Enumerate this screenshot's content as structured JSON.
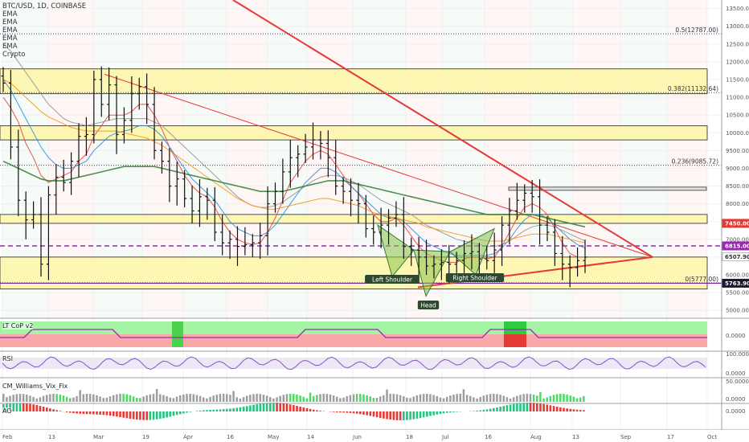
{
  "header": {
    "symbol": "BTC/USD, 1D, COINBASE",
    "indicators": [
      "EMA",
      "EMA",
      "EMA",
      "EMA",
      "EMA",
      "Crypto"
    ]
  },
  "panes": {
    "ltcop": "LT CoP v2",
    "rsi": "RSI",
    "vix": "CM_Williams_Vix_Fix",
    "ao": "AO"
  },
  "chart_data": {
    "type": "candlestick",
    "x_ticks": [
      "Feb",
      "13",
      "Mar",
      "19",
      "Apr",
      "16",
      "May",
      "14",
      "Jun",
      "18",
      "Jul",
      "16",
      "Aug",
      "13",
      "Sep",
      "17",
      "Oct"
    ],
    "y_ticks": [
      5000,
      5500,
      6000,
      6500,
      7000,
      7500,
      8000,
      8500,
      9000,
      9500,
      10000,
      10500,
      11000,
      11500,
      12000,
      12500,
      13000,
      13500
    ],
    "ylim": [
      4800,
      13650
    ],
    "closes": [
      11400,
      9600,
      8100,
      7550,
      7700,
      6300,
      8250,
      8750,
      8600,
      9200,
      9900,
      9950,
      11500,
      10800,
      11350,
      9950,
      10350,
      11100,
      11300,
      10800,
      9500,
      9200,
      8500,
      8700,
      8150,
      7800,
      8200,
      8100,
      7200,
      6900,
      7000,
      6800,
      6850,
      6900,
      7100,
      8000,
      8350,
      8900,
      9300,
      9400,
      9600,
      9800,
      9700,
      9300,
      8500,
      8350,
      8100,
      8000,
      7300,
      7200,
      7400,
      7600,
      7700,
      6800,
      6700,
      6500,
      6250,
      6300,
      6350,
      6300,
      6400,
      6600,
      6650,
      6450,
      6400,
      6700,
      7400,
      7800,
      8100,
      8300,
      8200,
      7400,
      7200,
      6600,
      6300,
      6200,
      6400,
      6500
    ],
    "ema_series": [
      {
        "color": "#e53935",
        "values": [
          11000,
          10700,
          10300,
          9700,
          9300,
          8800,
          8600,
          8700,
          8800,
          8900,
          9200,
          9400,
          9900,
          10200,
          10500,
          10500,
          10500,
          10600,
          10800,
          10800,
          10500,
          10100,
          9600,
          9200,
          8800,
          8500,
          8300,
          8200,
          7900,
          7500,
          7200,
          7000,
          6900,
          6850,
          6900,
          7200,
          7600,
          8100,
          8600,
          8900,
          9200,
          9400,
          9500,
          9400,
          9100,
          8800,
          8500,
          8300,
          8000,
          7700,
          7500,
          7500,
          7600,
          7400,
          7100,
          6800,
          6600,
          6500,
          6400,
          6350,
          6350,
          6450,
          6500,
          6500,
          6450,
          6500,
          6800,
          7200,
          7600,
          7900,
          8000,
          7900,
          7700,
          7300,
          6900,
          6600,
          6500,
          6500
        ]
      },
      {
        "color": "#1e88e5",
        "values": [
          11500,
          11200,
          10800,
          10400,
          10000,
          9600,
          9300,
          9100,
          9000,
          9000,
          9100,
          9200,
          9500,
          9700,
          9900,
          10000,
          10050,
          10100,
          10200,
          10200,
          10100,
          9900,
          9600,
          9300,
          9000,
          8700,
          8500,
          8300,
          8100,
          7800,
          7500,
          7300,
          7200,
          7100,
          7100,
          7200,
          7400,
          7700,
          8000,
          8300,
          8600,
          8800,
          9000,
          9000,
          8900,
          8700,
          8500,
          8300,
          8100,
          7900,
          7700,
          7600,
          7600,
          7500,
          7300,
          7100,
          6900,
          6800,
          6700,
          6600,
          6550,
          6550,
          6550,
          6550,
          6550,
          6600,
          6750,
          7000,
          7300,
          7550,
          7700,
          7700,
          7600,
          7400,
          7200,
          7000,
          6850,
          6750
        ]
      },
      {
        "color": "#8e8e8e",
        "values": [
          12500,
          12300,
          12000,
          11700,
          11400,
          11100,
          10800,
          10600,
          10400,
          10300,
          10250,
          10200,
          10250,
          10300,
          10350,
          10400,
          10400,
          10400,
          10400,
          10400,
          10300,
          10200,
          10000,
          9800,
          9600,
          9400,
          9200,
          9000,
          8800,
          8600,
          8400,
          8200,
          8050,
          7950,
          7900,
          7900,
          7950,
          8050,
          8200,
          8350,
          8500,
          8650,
          8750,
          8800,
          8800,
          8750,
          8650,
          8550,
          8400,
          8250,
          8100,
          8000,
          7900,
          7800,
          7700,
          7550,
          7400,
          7300,
          7200,
          7100,
          7000,
          6950,
          6900,
          6850,
          6800,
          6800,
          6850,
          6950,
          7100,
          7250,
          7350,
          7400,
          7400,
          7350,
          7250,
          7150,
          7050,
          6950
        ]
      },
      {
        "color": "#fb8c00",
        "values": [
          11500,
          11400,
          11200,
          11000,
          10800,
          10600,
          10450,
          10350,
          10250,
          10150,
          10100,
          10050,
          10050,
          10050,
          10050,
          10050,
          10000,
          9950,
          9900,
          9850,
          9750,
          9650,
          9500,
          9350,
          9200,
          9050,
          8900,
          8750,
          8600,
          8450,
          8300,
          8150,
          8050,
          7950,
          7900,
          7850,
          7850,
          7900,
          7950,
          8000,
          8050,
          8100,
          8150,
          8150,
          8100,
          8050,
          8000,
          7950,
          7850,
          7750,
          7700,
          7650,
          7600,
          7550,
          7500,
          7450,
          7350,
          7300,
          7250,
          7200,
          7150,
          7100,
          7050,
          7000,
          6950,
          6950,
          6950,
          7000,
          7050,
          7100,
          7150,
          7150,
          7150,
          7100,
          7050,
          7000,
          6950,
          6900
        ]
      },
      {
        "color": "#2e7d32",
        "values": [
          9200,
          9100,
          9000,
          8900,
          8800,
          8700,
          8650,
          8650,
          8650,
          8700,
          8750,
          8800,
          8850,
          8900,
          8950,
          9000,
          9050,
          9050,
          9050,
          9050,
          9050,
          9000,
          8950,
          8900,
          8850,
          8800,
          8750,
          8700,
          8650,
          8600,
          8550,
          8500,
          8450,
          8400,
          8350,
          8350,
          8350,
          8350,
          8400,
          8450,
          8500,
          8550,
          8600,
          8650,
          8650,
          8650,
          8600,
          8550,
          8500,
          8450,
          8400,
          8350,
          8300,
          8250,
          8200,
          8150,
          8100,
          8050,
          8000,
          7950,
          7900,
          7850,
          7800,
          7750,
          7700,
          7700,
          7700,
          7700,
          7700,
          7700,
          7700,
          7650,
          7600,
          7550,
          7500,
          7450,
          7400,
          7350
        ]
      }
    ],
    "zones": [
      {
        "from": 11100,
        "to": 11800
      },
      {
        "from": 9800,
        "to": 10200
      },
      {
        "from": 7450,
        "to": 7700
      },
      {
        "from": 5600,
        "to": 6500
      }
    ],
    "fib_levels": [
      {
        "label": "0.5(12787.00)",
        "value": 12787
      },
      {
        "label": "0.382(11132.64)",
        "value": 11132.64
      },
      {
        "label": "0.236(9085.72)",
        "value": 9085.72
      },
      {
        "label": "0(5777.00)",
        "value": 5777
      }
    ],
    "price_labels": [
      {
        "text": "7450.00",
        "value": 7450,
        "color": "#e53935"
      },
      {
        "text": "6815.00",
        "value": 6815,
        "color": "#9c27b0"
      },
      {
        "text": "6507.90",
        "value": 6507.9,
        "color": "#ffffff"
      },
      {
        "text": "5763.90",
        "value": 5763.9,
        "color": "#1a1a2e"
      }
    ],
    "annotations": [
      "Left Shoulder",
      "Head",
      "Right Shoulder"
    ],
    "osc_ticks": {
      "ltcop": "0.0000",
      "rsi_hi": "100.0000",
      "rsi_lo": "0.0000",
      "vix": "50.0000",
      "vix_lo": "0.0000",
      "ao": "0.0000"
    }
  }
}
